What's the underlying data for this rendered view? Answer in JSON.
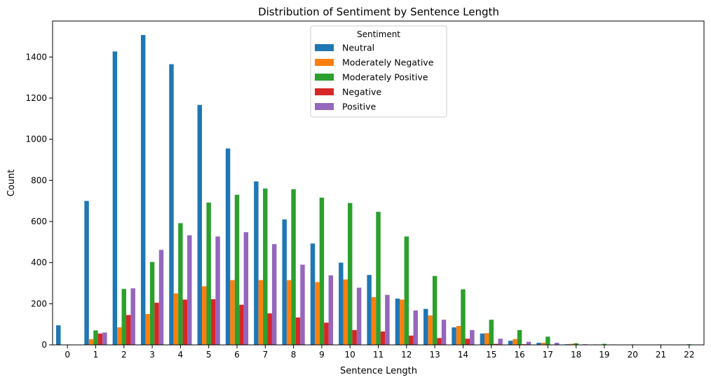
{
  "chart_data": {
    "type": "bar",
    "title": "Distribution of Sentiment by Sentence Length",
    "xlabel": "Sentence Length",
    "ylabel": "Count",
    "ylim": [
      0,
      1575
    ],
    "yticks": [
      0,
      200,
      400,
      600,
      800,
      1000,
      1200,
      1400
    ],
    "categories": [
      "0",
      "1",
      "2",
      "3",
      "4",
      "5",
      "6",
      "7",
      "8",
      "9",
      "10",
      "11",
      "12",
      "13",
      "14",
      "15",
      "16",
      "17",
      "18",
      "19",
      "20",
      "21",
      "22"
    ],
    "legend": {
      "title": "Sentiment",
      "position": "top-center"
    },
    "grid": false,
    "series": [
      {
        "name": "Neutral",
        "color": "#1f77b4",
        "values": [
          95,
          700,
          1427,
          1507,
          1365,
          1167,
          955,
          795,
          610,
          493,
          400,
          340,
          225,
          175,
          85,
          55,
          20,
          10,
          3,
          2,
          1,
          0,
          0
        ]
      },
      {
        "name": "Moderately Negative",
        "color": "#ff7f0e",
        "values": [
          0,
          28,
          85,
          150,
          250,
          285,
          315,
          315,
          315,
          305,
          318,
          232,
          220,
          143,
          92,
          57,
          28,
          10,
          5,
          2,
          0,
          0,
          0
        ]
      },
      {
        "name": "Moderately Positive",
        "color": "#2ca02c",
        "values": [
          0,
          70,
          272,
          403,
          592,
          692,
          730,
          760,
          757,
          716,
          690,
          647,
          527,
          335,
          270,
          122,
          72,
          40,
          8,
          5,
          2,
          2,
          3
        ]
      },
      {
        "name": "Negative",
        "color": "#d62728",
        "values": [
          0,
          55,
          145,
          205,
          220,
          222,
          195,
          153,
          133,
          108,
          72,
          65,
          45,
          33,
          30,
          5,
          3,
          1,
          1,
          0,
          0,
          0,
          0
        ]
      },
      {
        "name": "Positive",
        "color": "#9467bd",
        "values": [
          0,
          60,
          275,
          462,
          533,
          527,
          548,
          490,
          390,
          338,
          278,
          243,
          167,
          122,
          72,
          30,
          15,
          10,
          3,
          2,
          0,
          0,
          0
        ]
      }
    ]
  }
}
